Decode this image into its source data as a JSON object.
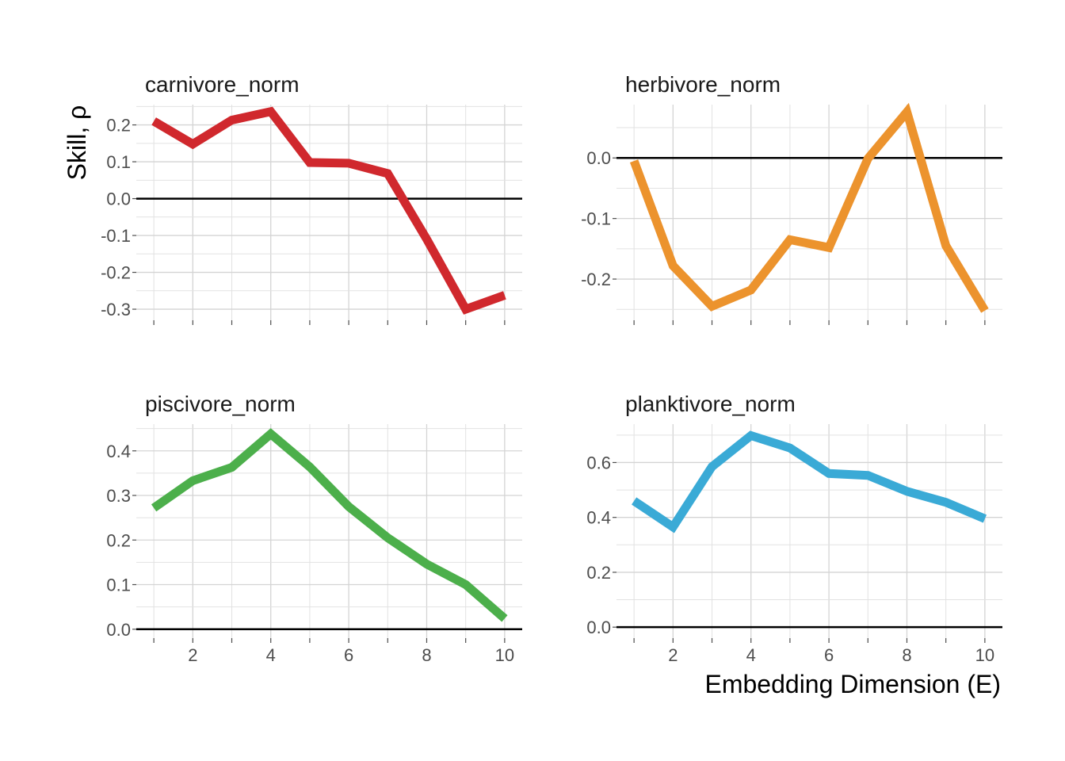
{
  "chart_data": {
    "type": "line",
    "xlabel": "Embedding Dimension (E)",
    "ylabel": "Skill, ρ",
    "x": [
      1,
      2,
      3,
      4,
      5,
      6,
      7,
      8,
      9,
      10
    ],
    "xlim": [
      0.55,
      10.45
    ],
    "xticks": [
      2,
      4,
      6,
      8,
      10
    ],
    "grid": true,
    "panels": [
      {
        "title": "carnivore_norm",
        "color": "#d0282d",
        "values": [
          0.21,
          0.148,
          0.213,
          0.236,
          0.098,
          0.096,
          0.068,
          -0.11,
          -0.3,
          -0.262
        ],
        "ylim": [
          -0.33,
          0.255
        ],
        "yticks": [
          0.2,
          0.1,
          0.0,
          -0.1,
          -0.2,
          -0.3
        ],
        "ytick_labels": [
          "0.2",
          "0.1",
          "0.0",
          "-0.1",
          "-0.2",
          "-0.3"
        ]
      },
      {
        "title": "herbivore_norm",
        "color": "#ec932d",
        "values": [
          -0.005,
          -0.178,
          -0.245,
          -0.218,
          -0.135,
          -0.148,
          -0.001,
          0.076,
          -0.145,
          -0.252
        ],
        "ylim": [
          -0.268,
          0.088
        ],
        "yticks": [
          0.0,
          -0.1,
          -0.2
        ],
        "ytick_labels": [
          "0.0",
          "-0.1",
          "-0.2"
        ]
      },
      {
        "title": "piscivore_norm",
        "color": "#4caf4b",
        "values": [
          0.272,
          0.333,
          0.363,
          0.438,
          0.364,
          0.275,
          0.205,
          0.146,
          0.1,
          0.024
        ],
        "ylim": [
          -0.02,
          0.46
        ],
        "yticks": [
          0.4,
          0.3,
          0.2,
          0.1,
          0.0
        ],
        "ytick_labels": [
          "0.4",
          "0.3",
          "0.2",
          "0.1",
          "0.0"
        ]
      },
      {
        "title": "planktivore_norm",
        "color": "#3aaad6",
        "values": [
          0.46,
          0.365,
          0.585,
          0.698,
          0.653,
          0.56,
          0.553,
          0.495,
          0.455,
          0.395
        ],
        "ylim": [
          -0.04,
          0.74
        ],
        "yticks": [
          0.6,
          0.4,
          0.2,
          0.0
        ],
        "ytick_labels": [
          "0.6",
          "0.4",
          "0.2",
          "0.0"
        ]
      }
    ]
  }
}
